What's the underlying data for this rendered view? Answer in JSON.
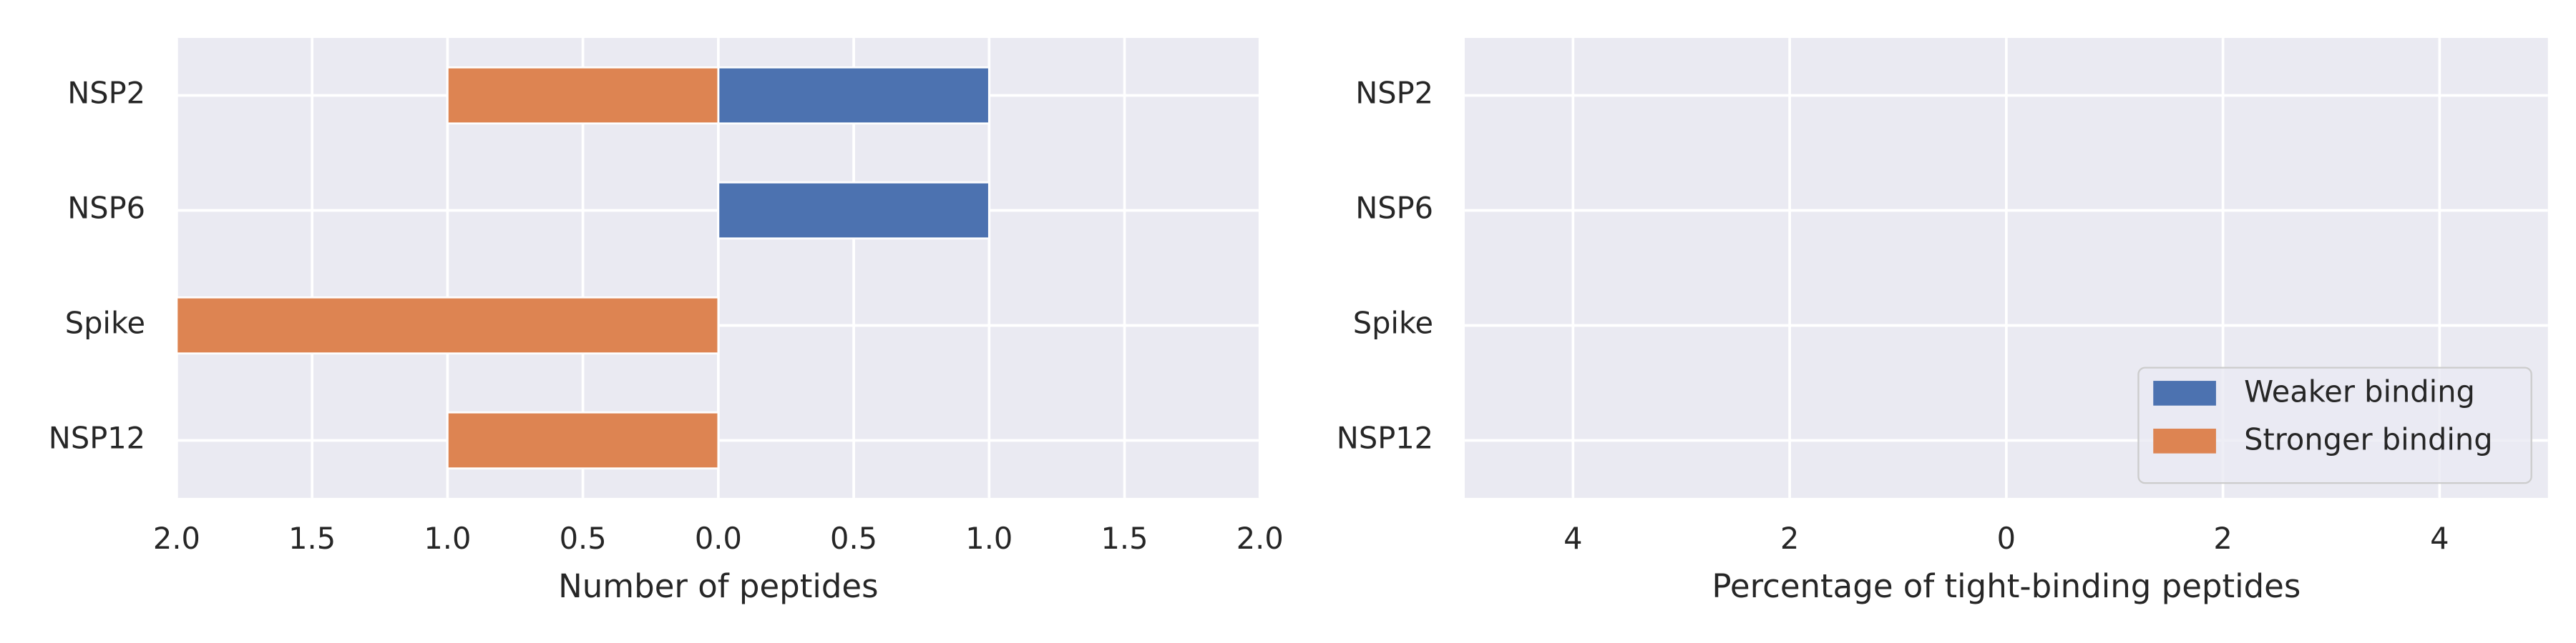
{
  "chart_data": [
    {
      "type": "bar",
      "orientation": "horizontal",
      "xlabel": "Number of peptides",
      "categories": [
        "NSP2",
        "NSP6",
        "Spike",
        "NSP12"
      ],
      "series": [
        {
          "name": "Weaker binding",
          "color": "#4c72b0",
          "values": [
            1,
            1,
            0,
            0
          ]
        },
        {
          "name": "Stronger binding",
          "color": "#dd8452",
          "values": [
            -1,
            0,
            -2,
            -1
          ]
        }
      ],
      "xlim": [
        -2,
        2
      ],
      "xticks": [
        {
          "value": -2,
          "label": "2.0"
        },
        {
          "value": -1.5,
          "label": "1.5"
        },
        {
          "value": -1,
          "label": "1.0"
        },
        {
          "value": -0.5,
          "label": "0.5"
        },
        {
          "value": 0,
          "label": "0.0"
        },
        {
          "value": 0.5,
          "label": "0.5"
        },
        {
          "value": 1,
          "label": "1.0"
        },
        {
          "value": 1.5,
          "label": "1.5"
        },
        {
          "value": 2,
          "label": "2.0"
        }
      ],
      "grid": true,
      "show_legend": false
    },
    {
      "type": "bar",
      "orientation": "horizontal",
      "xlabel": "Percentage of tight-binding peptides",
      "categories": [
        "NSP2",
        "NSP6",
        "Spike",
        "NSP12"
      ],
      "series": [
        {
          "name": "Weaker binding",
          "color": "#4c72b0",
          "values": [
            0,
            0,
            0,
            0
          ]
        },
        {
          "name": "Stronger binding",
          "color": "#dd8452",
          "values": [
            0,
            0,
            0,
            0
          ]
        }
      ],
      "xlim": [
        -5,
        5
      ],
      "xticks": [
        {
          "value": -4,
          "label": "4"
        },
        {
          "value": -2,
          "label": "2"
        },
        0,
        2,
        4
      ],
      "grid": true,
      "show_legend": true,
      "legend": "lower right"
    }
  ]
}
